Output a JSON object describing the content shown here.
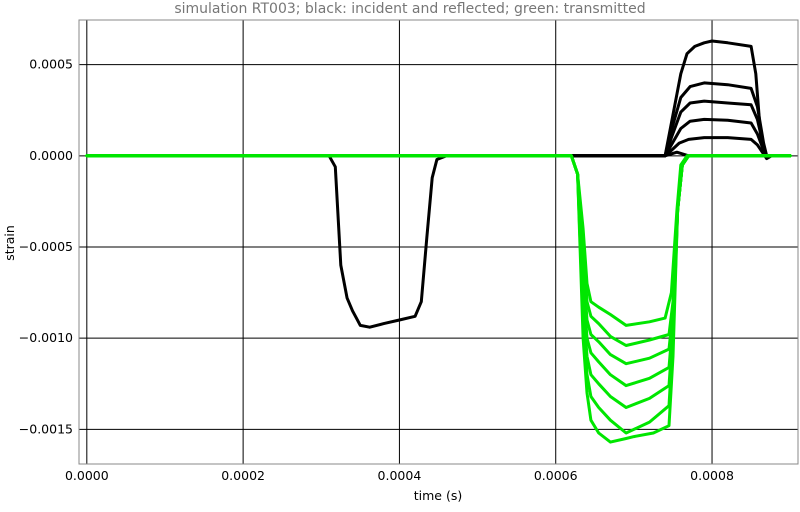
{
  "chart_data": {
    "type": "line",
    "title": "simulation RT003; black: incident and reflected; green: transmitted",
    "xlabel": "time (s)",
    "ylabel": "strain",
    "xlim": [
      -1e-05,
      0.00091
    ],
    "ylim": [
      -0.00169,
      0.000745
    ],
    "grid": true,
    "x_ticks": [
      {
        "value": 0.0,
        "label": "0.0000"
      },
      {
        "value": 0.0002,
        "label": "0.0002"
      },
      {
        "value": 0.0004,
        "label": "0.0004"
      },
      {
        "value": 0.0006,
        "label": "0.0006"
      },
      {
        "value": 0.0008,
        "label": "0.0008"
      }
    ],
    "y_ticks": [
      {
        "value": 0.0005,
        "label": "0.0005"
      },
      {
        "value": 0.0,
        "label": "0.0000"
      },
      {
        "value": -0.0005,
        "label": "−0.0005"
      },
      {
        "value": -0.001,
        "label": "−0.0010"
      },
      {
        "value": -0.0015,
        "label": "−0.0015"
      }
    ],
    "colors": {
      "black": "#000000",
      "green": "#00e600",
      "grid": "#000000",
      "frame": "#888888"
    },
    "series": [
      {
        "color": "black",
        "points": [
          [
            0.0,
            0.0
          ],
          [
            0.00031,
            0.0
          ],
          [
            0.000318,
            -6e-05
          ],
          [
            0.000325,
            -0.0006
          ],
          [
            0.000333,
            -0.00078
          ],
          [
            0.00034,
            -0.00085
          ],
          [
            0.000345,
            -0.00089
          ],
          [
            0.00035,
            -0.00093
          ],
          [
            0.000362,
            -0.00094
          ],
          [
            0.00038,
            -0.00092
          ],
          [
            0.0004,
            -0.0009
          ],
          [
            0.00042,
            -0.00088
          ],
          [
            0.000428,
            -0.0008
          ],
          [
            0.000435,
            -0.00045
          ],
          [
            0.000442,
            -0.00012
          ],
          [
            0.000448,
            -2e-05
          ],
          [
            0.00046,
            0.0
          ],
          [
            0.00074,
            0.0
          ],
          [
            0.000755,
            2e-05
          ],
          [
            0.00077,
            0.0
          ],
          [
            0.0009,
            0.0
          ]
        ]
      },
      {
        "color": "black",
        "points": [
          [
            0.0,
            0.0
          ],
          [
            0.00074,
            0.0
          ],
          [
            0.000748,
            3e-05
          ],
          [
            0.000758,
            7e-05
          ],
          [
            0.00077,
            9e-05
          ],
          [
            0.00079,
            0.0001
          ],
          [
            0.00082,
            0.0001
          ],
          [
            0.00085,
            9e-05
          ],
          [
            0.000858,
            6e-05
          ],
          [
            0.000866,
            1e-05
          ],
          [
            0.00087,
            -1.5e-05
          ],
          [
            0.000876,
            0.0
          ],
          [
            0.0009,
            0.0
          ]
        ]
      },
      {
        "color": "black",
        "points": [
          [
            0.0,
            0.0
          ],
          [
            0.00074,
            0.0
          ],
          [
            0.000748,
            6e-05
          ],
          [
            0.00076,
            0.00015
          ],
          [
            0.000772,
            0.00019
          ],
          [
            0.00079,
            0.0002
          ],
          [
            0.00082,
            0.000195
          ],
          [
            0.00085,
            0.00018
          ],
          [
            0.000858,
            0.00012
          ],
          [
            0.000866,
            3e-05
          ],
          [
            0.00087,
            -1e-05
          ],
          [
            0.000876,
            0.0
          ],
          [
            0.0009,
            0.0
          ]
        ]
      },
      {
        "color": "black",
        "points": [
          [
            0.0,
            0.0
          ],
          [
            0.00074,
            0.0
          ],
          [
            0.000748,
            0.0001
          ],
          [
            0.00076,
            0.00024
          ],
          [
            0.000772,
            0.00029
          ],
          [
            0.00079,
            0.0003
          ],
          [
            0.00082,
            0.00029
          ],
          [
            0.00085,
            0.00028
          ],
          [
            0.000858,
            0.0002
          ],
          [
            0.000866,
            5e-05
          ],
          [
            0.00087,
            0.0
          ],
          [
            0.0009,
            0.0
          ]
        ]
      },
      {
        "color": "black",
        "points": [
          [
            0.0,
            0.0
          ],
          [
            0.00074,
            0.0
          ],
          [
            0.000748,
            0.00014
          ],
          [
            0.00076,
            0.00032
          ],
          [
            0.000772,
            0.00038
          ],
          [
            0.00079,
            0.0004
          ],
          [
            0.00082,
            0.00039
          ],
          [
            0.00085,
            0.00037
          ],
          [
            0.000858,
            0.00027
          ],
          [
            0.000866,
            7e-05
          ],
          [
            0.00087,
            0.0
          ],
          [
            0.0009,
            0.0
          ]
        ]
      },
      {
        "color": "black",
        "points": [
          [
            0.0,
            0.0
          ],
          [
            0.00074,
            0.0
          ],
          [
            0.000748,
            0.00018
          ],
          [
            0.00076,
            0.00045
          ],
          [
            0.000768,
            0.00056
          ],
          [
            0.000778,
            0.0006
          ],
          [
            0.00079,
            0.00062
          ],
          [
            0.0008,
            0.00063
          ],
          [
            0.00082,
            0.00062
          ],
          [
            0.00085,
            0.0006
          ],
          [
            0.000856,
            0.00045
          ],
          [
            0.000862,
            0.00012
          ],
          [
            0.000868,
            0.0
          ],
          [
            0.0009,
            0.0
          ]
        ]
      },
      {
        "color": "green",
        "points": [
          [
            0.0,
            0.0
          ],
          [
            0.00062,
            0.0
          ],
          [
            0.000628,
            -0.0001
          ],
          [
            0.000635,
            -0.0004
          ],
          [
            0.00064,
            -0.0007
          ],
          [
            0.000645,
            -0.0008
          ],
          [
            0.000655,
            -0.00083
          ],
          [
            0.00067,
            -0.00087
          ],
          [
            0.00069,
            -0.00093
          ],
          [
            0.00072,
            -0.00091
          ],
          [
            0.00074,
            -0.00089
          ],
          [
            0.000748,
            -0.00075
          ],
          [
            0.000755,
            -0.0003
          ],
          [
            0.00076,
            -5e-05
          ],
          [
            0.000768,
            0.0
          ],
          [
            0.0009,
            0.0
          ]
        ]
      },
      {
        "color": "green",
        "points": [
          [
            0.0,
            0.0
          ],
          [
            0.00062,
            0.0
          ],
          [
            0.000628,
            -0.0001
          ],
          [
            0.000635,
            -0.0005
          ],
          [
            0.00064,
            -0.0008
          ],
          [
            0.000645,
            -0.00088
          ],
          [
            0.000655,
            -0.00092
          ],
          [
            0.00067,
            -0.00099
          ],
          [
            0.00069,
            -0.00104
          ],
          [
            0.00072,
            -0.00101
          ],
          [
            0.000745,
            -0.00098
          ],
          [
            0.00075,
            -0.0008
          ],
          [
            0.000756,
            -0.0003
          ],
          [
            0.000762,
            -5e-05
          ],
          [
            0.00077,
            0.0
          ],
          [
            0.0009,
            0.0
          ]
        ]
      },
      {
        "color": "green",
        "points": [
          [
            0.0,
            0.0
          ],
          [
            0.00062,
            0.0
          ],
          [
            0.000628,
            -0.0001
          ],
          [
            0.000635,
            -0.0006
          ],
          [
            0.00064,
            -0.0009
          ],
          [
            0.000645,
            -0.00098
          ],
          [
            0.000655,
            -0.00102
          ],
          [
            0.00067,
            -0.00109
          ],
          [
            0.00069,
            -0.00114
          ],
          [
            0.00072,
            -0.00111
          ],
          [
            0.000745,
            -0.00106
          ],
          [
            0.00075,
            -0.00085
          ],
          [
            0.000756,
            -0.0003
          ],
          [
            0.000762,
            -5e-05
          ],
          [
            0.00077,
            0.0
          ],
          [
            0.0009,
            0.0
          ]
        ]
      },
      {
        "color": "green",
        "points": [
          [
            0.0,
            0.0
          ],
          [
            0.00062,
            0.0
          ],
          [
            0.000628,
            -0.0001
          ],
          [
            0.000635,
            -0.0007
          ],
          [
            0.00064,
            -0.001
          ],
          [
            0.000645,
            -0.00108
          ],
          [
            0.000655,
            -0.00113
          ],
          [
            0.00067,
            -0.0012
          ],
          [
            0.00069,
            -0.00126
          ],
          [
            0.00072,
            -0.00122
          ],
          [
            0.000745,
            -0.00116
          ],
          [
            0.00075,
            -0.0009
          ],
          [
            0.000756,
            -0.0003
          ],
          [
            0.000762,
            -5e-05
          ],
          [
            0.00077,
            0.0
          ],
          [
            0.0009,
            0.0
          ]
        ]
      },
      {
        "color": "green",
        "points": [
          [
            0.0,
            0.0
          ],
          [
            0.00062,
            0.0
          ],
          [
            0.000628,
            -0.0001
          ],
          [
            0.000635,
            -0.0008
          ],
          [
            0.00064,
            -0.0011
          ],
          [
            0.000645,
            -0.0012
          ],
          [
            0.000655,
            -0.00125
          ],
          [
            0.00067,
            -0.00132
          ],
          [
            0.00069,
            -0.00138
          ],
          [
            0.00072,
            -0.00133
          ],
          [
            0.000745,
            -0.00126
          ],
          [
            0.00075,
            -0.00095
          ],
          [
            0.000756,
            -0.0003
          ],
          [
            0.000762,
            -5e-05
          ],
          [
            0.00077,
            0.0
          ],
          [
            0.0009,
            0.0
          ]
        ]
      },
      {
        "color": "green",
        "points": [
          [
            0.0,
            0.0
          ],
          [
            0.00062,
            0.0
          ],
          [
            0.000628,
            -0.0001
          ],
          [
            0.000635,
            -0.0009
          ],
          [
            0.00064,
            -0.0012
          ],
          [
            0.000645,
            -0.00132
          ],
          [
            0.000655,
            -0.00138
          ],
          [
            0.00067,
            -0.00145
          ],
          [
            0.00069,
            -0.00152
          ],
          [
            0.00072,
            -0.00146
          ],
          [
            0.000745,
            -0.00137
          ],
          [
            0.00075,
            -0.001
          ],
          [
            0.000756,
            -0.0003
          ],
          [
            0.000762,
            -5e-05
          ],
          [
            0.00077,
            0.0
          ],
          [
            0.0009,
            0.0
          ]
        ]
      },
      {
        "color": "green",
        "points": [
          [
            0.0,
            0.0
          ],
          [
            0.00062,
            0.0
          ],
          [
            0.000628,
            -0.0001
          ],
          [
            0.000635,
            -0.001
          ],
          [
            0.00064,
            -0.0013
          ],
          [
            0.000645,
            -0.00145
          ],
          [
            0.000655,
            -0.00152
          ],
          [
            0.00067,
            -0.00157
          ],
          [
            0.00069,
            -0.00155
          ],
          [
            0.0007,
            -0.00154
          ],
          [
            0.000725,
            -0.00152
          ],
          [
            0.000745,
            -0.00148
          ],
          [
            0.00075,
            -0.0011
          ],
          [
            0.000756,
            -0.0003
          ],
          [
            0.000762,
            -5e-05
          ],
          [
            0.00077,
            0.0
          ],
          [
            0.0009,
            0.0
          ]
        ]
      }
    ]
  }
}
